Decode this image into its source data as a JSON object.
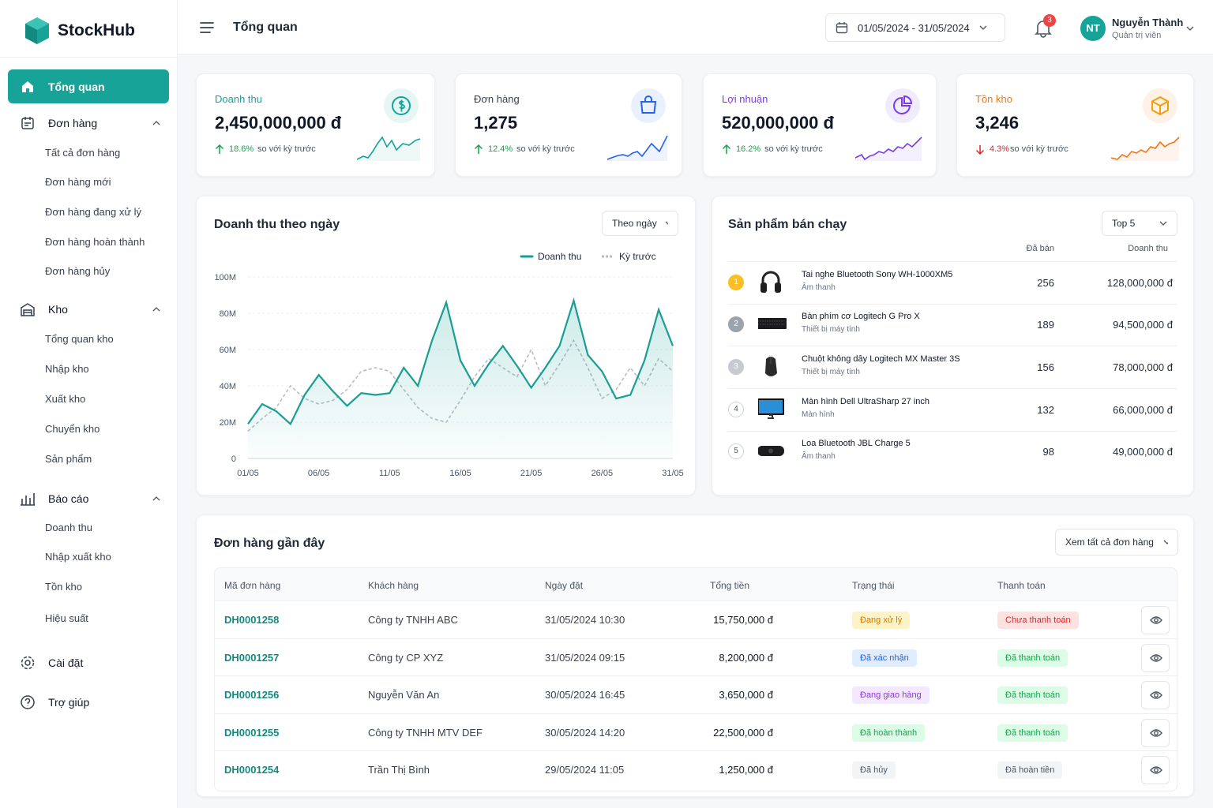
{
  "sidebar": {
    "brand": "StockHub",
    "menu": [
      {
        "label": "Tổng quan"
      },
      {
        "label": "Đơn hàng",
        "items": [
          "Tất cả đơn hàng",
          "Đơn hàng mới",
          "Đơn hàng đang xử lý",
          "Đơn hàng hoàn thành",
          "Đơn hàng hủy"
        ]
      },
      {
        "label": "Kho",
        "items": [
          "Tổng quan kho",
          "Nhập kho",
          "Xuất kho",
          "Chuyển kho",
          "Sản phẩm"
        ]
      },
      {
        "label": "Báo cáo",
        "items": [
          "Doanh thu",
          "Nhập xuất kho",
          "Tồn kho",
          "Hiệu suất"
        ]
      },
      {
        "label": "Cài đặt"
      },
      {
        "label": "Trợ giúp"
      }
    ]
  },
  "header": {
    "title": "Tổng quan",
    "date_range": "01/05/2024 - 31/05/2024",
    "notifications": "3",
    "user_initials": "NT",
    "user_name": "Nguyễn Thành",
    "user_role": "Quản trị viên"
  },
  "kpis": [
    {
      "label": "Doanh thu",
      "value": "2,450,000,000 đ",
      "change": "18.6%",
      "compare": "so với kỳ trước"
    },
    {
      "label": "Đơn hàng",
      "value": "1,275",
      "change": "12.4%",
      "compare": "so với kỳ trước"
    },
    {
      "label": "Lợi nhuận",
      "value": "520,000,000 đ",
      "change": "16.2%",
      "compare": "so với kỳ trước"
    },
    {
      "label": "Tồn kho",
      "value": "3,246",
      "change": "4.3%",
      "compare": "so với kỳ trước"
    }
  ],
  "chart_data": {
    "type": "line",
    "title": "Doanh thu theo ngày",
    "filter": "Theo ngày",
    "categories": [
      "01/05",
      null,
      null,
      null,
      null,
      "06/05",
      null,
      null,
      null,
      null,
      "11/05",
      null,
      null,
      null,
      null,
      "16/05",
      null,
      null,
      null,
      null,
      "21/05",
      null,
      null,
      null,
      null,
      "26/05",
      null,
      null,
      null,
      null,
      "31/05"
    ],
    "series": [
      {
        "name": "Doanh thu",
        "color": "#1a9e94",
        "values": [
          19,
          30,
          26,
          19,
          35,
          46,
          37,
          29,
          36,
          35,
          36,
          50,
          40,
          65,
          86,
          54,
          40,
          52,
          62,
          51,
          39,
          50,
          62,
          87,
          57,
          48,
          33,
          35,
          54,
          82,
          62
        ]
      },
      {
        "name": "Kỳ trước",
        "color": "#b8bcc4",
        "values": [
          15,
          22,
          28,
          40,
          33,
          30,
          32,
          38,
          48,
          50,
          48,
          38,
          28,
          22,
          20,
          32,
          45,
          55,
          50,
          45,
          60,
          40,
          52,
          65,
          50,
          33,
          38,
          50,
          40,
          55,
          48
        ]
      }
    ],
    "ylim": [
      0,
      100
    ],
    "yticks": [
      0,
      {
        "value": 20,
        "label": "20M"
      },
      {
        "value": 40,
        "label": "40M"
      },
      {
        "value": 60,
        "label": "60M"
      },
      {
        "value": 80,
        "label": "80M"
      },
      {
        "value": 100,
        "label": "100M"
      }
    ],
    "grid": true
  },
  "top_products": {
    "title": "Sản phẩm bán chạy",
    "filter": "Top 5",
    "columns": [
      "Đã bán",
      "Doanh thu"
    ],
    "rows": [
      {
        "rank": "1",
        "name": "Tai nghe Bluetooth Sony WH-1000XM5",
        "category": "Âm thanh",
        "sold": "256",
        "revenue": "128,000,000 đ"
      },
      {
        "rank": "2",
        "name": "Bàn phím cơ Logitech G Pro X",
        "category": "Thiết bị máy tính",
        "sold": "189",
        "revenue": "94,500,000 đ"
      },
      {
        "rank": "3",
        "name": "Chuột không dây Logitech MX Master 3S",
        "category": "Thiết bị máy tính",
        "sold": "156",
        "revenue": "78,000,000 đ"
      },
      {
        "rank": "4",
        "name": "Màn hình Dell UltraSharp 27 inch",
        "category": "Màn hình",
        "sold": "132",
        "revenue": "66,000,000 đ"
      },
      {
        "rank": "5",
        "name": "Loa Bluetooth JBL Charge 5",
        "category": "Âm thanh",
        "sold": "98",
        "revenue": "49,000,000 đ"
      }
    ]
  },
  "recent_orders": {
    "title": "Đơn hàng gần đây",
    "view_all": "Xem tất cả đơn hàng",
    "columns": [
      "Mã đơn hàng",
      "Khách hàng",
      "Ngày đặt",
      "Tổng tiền",
      "Trạng thái",
      "Thanh toán"
    ],
    "rows": [
      [
        "DH0001258",
        "Công ty TNHH ABC",
        "31/05/2024 10:30",
        "15,750,000 đ",
        "Đang xử lý",
        "Chưa thanh toán"
      ],
      [
        "DH0001257",
        "Công ty CP XYZ",
        "31/05/2024 09:15",
        "8,200,000 đ",
        "Đã xác nhận",
        "Đã thanh toán"
      ],
      [
        "DH0001256",
        "Nguyễn Văn An",
        "30/05/2024 16:45",
        "3,650,000 đ",
        "Đang giao hàng",
        "Đã thanh toán"
      ],
      [
        "DH0001255",
        "Công ty TNHH MTV DEF",
        "30/05/2024 14:20",
        "22,500,000 đ",
        "Đã hoàn thành",
        "Đã thanh toán"
      ],
      [
        "DH0001254",
        "Trần Thị Bình",
        "29/05/2024 11:05",
        "1,250,000 đ",
        "Đã hủy",
        "Đã hoàn tiền"
      ]
    ]
  }
}
